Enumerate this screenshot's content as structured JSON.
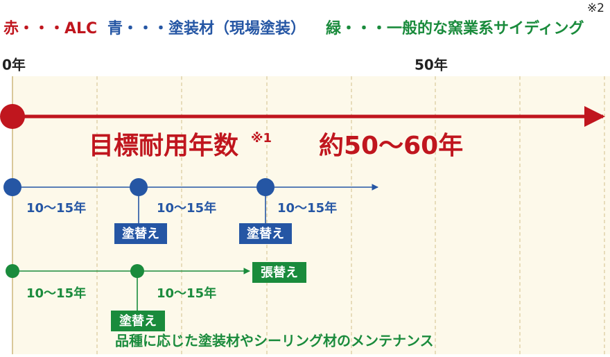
{
  "note_mark": "※2",
  "legend": [
    {
      "text": "赤・・・ALC",
      "color": "#c0161e"
    },
    {
      "text": "青・・・塗装材（現場塗装）",
      "color": "#2556a4"
    },
    {
      "text": "緑・・・一般的な窯業系サイディング",
      "color": "#1a8b3c"
    }
  ],
  "axis": {
    "start": "0年",
    "mid": "50年"
  },
  "red": {
    "label": "目標耐用年数",
    "sup": "※1",
    "span": "約50〜60年"
  },
  "blue": {
    "intervals": [
      "10〜15年",
      "10〜15年",
      "10〜15年"
    ],
    "boxes": [
      "塗替え",
      "塗替え"
    ]
  },
  "green": {
    "intervals": [
      "10〜15年",
      "10〜15年"
    ],
    "boxes": [
      "塗替え",
      "張替え"
    ],
    "footer": "品種に応じた塗装材やシーリング材のメンテナンス"
  }
}
